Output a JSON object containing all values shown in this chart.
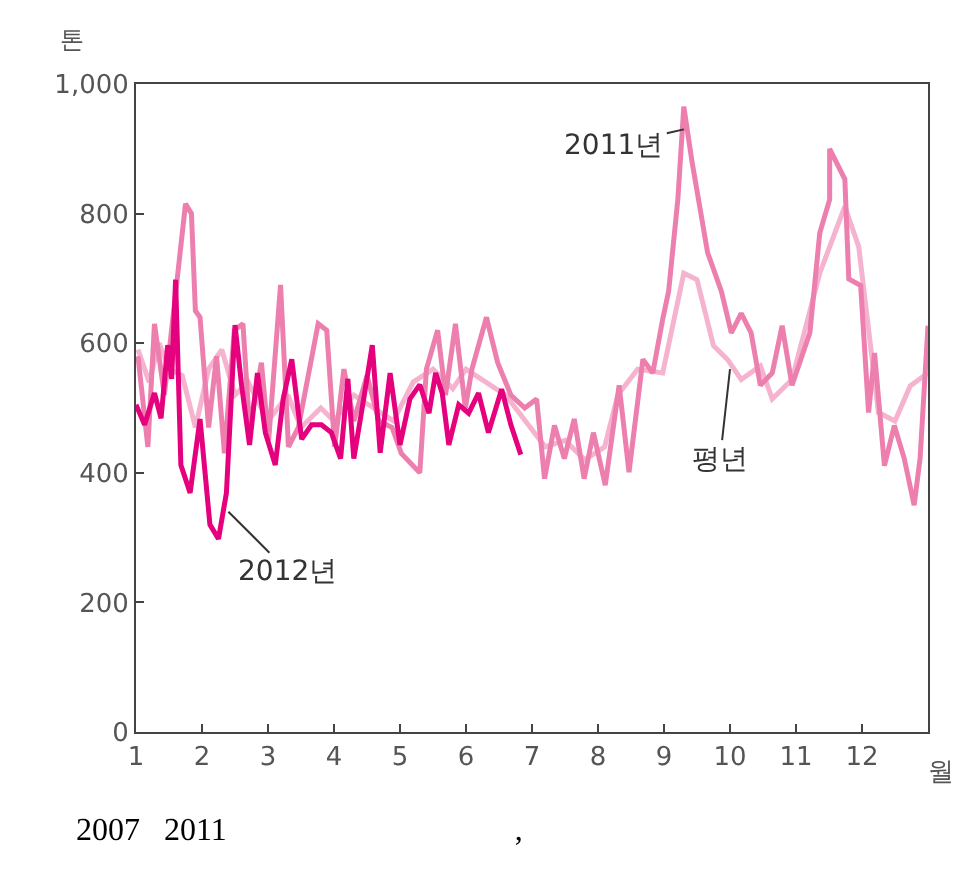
{
  "chart_data": {
    "type": "line",
    "xlabel": "월",
    "ylabel": "톤",
    "xlim": [
      1,
      13
    ],
    "xticks": [
      1,
      2,
      3,
      4,
      5,
      6,
      7,
      8,
      9,
      10,
      11,
      12
    ],
    "ylim": [
      0,
      1000
    ],
    "yticks": [
      0,
      200,
      400,
      600,
      800,
      {
        "value": 1000,
        "label": "1,000"
      }
    ],
    "marker": "none",
    "line_style": "solid",
    "series": [
      {
        "color": "#f5b3cf",
        "x": [
          1.03,
          1.2,
          1.35,
          1.5,
          1.7,
          1.9,
          2.1,
          2.3,
          2.5,
          2.7,
          3.0,
          3.3,
          3.5,
          3.8,
          4.0,
          4.3,
          4.6,
          4.9,
          5.2,
          5.5,
          5.8,
          6.0,
          6.3,
          6.6,
          6.9,
          7.2,
          7.5,
          7.8,
          8.1,
          8.3,
          8.6,
          8.98,
          9.3,
          9.5,
          9.75,
          9.96,
          10.17,
          10.46,
          10.64,
          10.94,
          11.36,
          11.74,
          11.95,
          12.25,
          12.5,
          12.73,
          13.0
        ],
        "values": [
          590,
          540,
          600,
          560,
          550,
          470,
          560,
          590,
          520,
          540,
          480,
          520,
          470,
          500,
          480,
          520,
          500,
          480,
          540,
          560,
          530,
          560,
          540,
          520,
          480,
          440,
          450,
          420,
          440,
          520,
          560,
          554,
          708,
          698,
          596,
          575,
          544,
          565,
          514,
          544,
          708,
          811,
          749,
          493,
          480,
          534,
          554
        ]
      },
      {
        "color": "#ec7fae",
        "x": [
          1.03,
          1.18,
          1.28,
          1.43,
          1.75,
          1.84,
          1.9,
          1.97,
          2.1,
          2.22,
          2.34,
          2.49,
          2.62,
          2.72,
          2.9,
          3.01,
          3.19,
          3.31,
          3.46,
          3.76,
          3.89,
          4.01,
          4.15,
          4.3,
          4.5,
          4.68,
          4.88,
          5.02,
          5.3,
          5.4,
          5.57,
          5.69,
          5.84,
          5.99,
          6.09,
          6.31,
          6.48,
          6.68,
          6.89,
          7.07,
          7.19,
          7.34,
          7.49,
          7.64,
          7.79,
          7.93,
          8.11,
          8.32,
          8.47,
          8.68,
          8.83,
          8.98,
          9.07,
          9.21,
          9.3,
          9.42,
          9.66,
          9.87,
          10.02,
          10.17,
          10.32,
          10.46,
          10.64,
          10.79,
          10.94,
          11.21,
          11.36,
          11.51,
          11.51,
          11.74,
          11.8,
          11.98,
          12.1,
          12.19,
          12.34,
          12.49,
          12.64,
          12.79,
          12.88,
          13.0
        ],
        "values": [
          580,
          440,
          630,
          520,
          815,
          800,
          650,
          640,
          470,
          580,
          430,
          620,
          630,
          470,
          570,
          450,
          690,
          440,
          470,
          630,
          620,
          440,
          560,
          480,
          550,
          480,
          470,
          430,
          400,
          560,
          620,
          520,
          630,
          500,
          560,
          640,
          570,
          520,
          500,
          514,
          391,
          473,
          422,
          483,
          391,
          462,
          381,
          535,
          401,
          575,
          554,
          637,
          680,
          822,
          965,
          883,
          740,
          680,
          616,
          646,
          616,
          535,
          554,
          627,
          535,
          616,
          770,
          822,
          900,
          853,
          699,
          689,
          493,
          585,
          411,
          473,
          422,
          350,
          422,
          627
        ]
      },
      {
        "color": "#e5007e",
        "x": [
          1.0,
          1.13,
          1.28,
          1.38,
          1.48,
          1.54,
          1.6,
          1.68,
          1.82,
          1.97,
          2.12,
          2.25,
          2.37,
          2.5,
          2.6,
          2.72,
          2.84,
          2.96,
          3.11,
          3.23,
          3.36,
          3.51,
          3.66,
          3.81,
          3.96,
          4.1,
          4.21,
          4.3,
          4.45,
          4.58,
          4.7,
          4.85,
          5.0,
          5.15,
          5.3,
          5.44,
          5.54,
          5.64,
          5.74,
          5.89,
          6.04,
          6.19,
          6.34,
          6.54,
          6.68,
          6.83
        ],
        "values": [
          505,
          474,
          523,
          484,
          597,
          545,
          698,
          412,
          369,
          483,
          320,
          298,
          369,
          628,
          535,
          443,
          554,
          462,
          412,
          514,
          575,
          452,
          474,
          474,
          462,
          422,
          545,
          422,
          514,
          597,
          431,
          554,
          443,
          514,
          536,
          492,
          554,
          523,
          443,
          505,
          492,
          523,
          462,
          529,
          474,
          428
        ]
      }
    ],
    "annotations": [
      {
        "text": "2011년",
        "x": 9.3,
        "y": 930
      },
      {
        "text": "평년",
        "x": 10.0,
        "y": 560
      },
      {
        "text": "2012년",
        "x": 2.4,
        "y": 340
      },
      "2007   2011                                    ,"
    ]
  }
}
